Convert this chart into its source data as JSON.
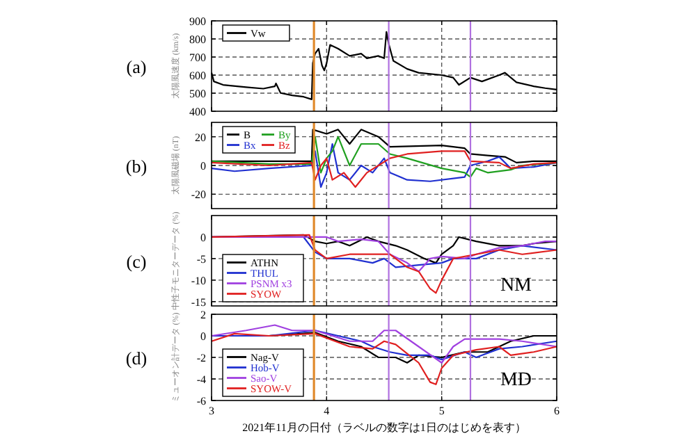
{
  "chart_data": [
    {
      "type": "line",
      "ylabel": "太陽風速度 (km/s)",
      "annotations": [
        "(a)"
      ],
      "xlim": [
        3,
        6
      ],
      "xticks": [
        3,
        4,
        5,
        6
      ],
      "ylim": [
        400,
        900
      ],
      "yticks": [
        400,
        500,
        600,
        700,
        800,
        900
      ],
      "grid": true,
      "legend": "top left",
      "tick_labels": "y",
      "ref_lines": [
        {
          "axis": "x",
          "value": 3.89,
          "color": "#e08a2c"
        },
        {
          "axis": "x",
          "value": 4.54,
          "color": "#b070e0"
        },
        {
          "axis": "x",
          "value": 5.25,
          "color": "#b070e0"
        }
      ],
      "series": [
        {
          "name": "Vw",
          "color": "#000000",
          "x": [
            3.0,
            3.02,
            3.1,
            3.3,
            3.45,
            3.55,
            3.56,
            3.6,
            3.7,
            3.8,
            3.87,
            3.88,
            3.9,
            3.93,
            3.96,
            3.98,
            4.0,
            4.03,
            4.1,
            4.2,
            4.3,
            4.35,
            4.45,
            4.5,
            4.52,
            4.54,
            4.58,
            4.7,
            4.8,
            5.0,
            5.1,
            5.15,
            5.25,
            5.35,
            5.5,
            5.55,
            5.65,
            5.8,
            5.9,
            6.0
          ],
          "values": [
            613,
            565,
            546,
            533,
            525,
            538,
            554,
            501,
            488,
            480,
            466,
            666,
            719,
            746,
            653,
            626,
            666,
            767,
            746,
            706,
            719,
            693,
            706,
            693,
            839,
            772,
            679,
            634,
            613,
            600,
            586,
            546,
            586,
            565,
            600,
            613,
            560,
            538,
            528,
            520
          ]
        }
      ]
    },
    {
      "type": "line",
      "ylabel": "太陽風磁場 (nT)",
      "annotations": [
        "(b)"
      ],
      "xlim": [
        3,
        6
      ],
      "xticks": [
        3,
        4,
        5,
        6
      ],
      "ylim": [
        -30,
        30
      ],
      "yticks": [
        -20,
        0,
        20
      ],
      "grid": true,
      "legend": "top left",
      "tick_labels": "y",
      "ref_lines": [
        {
          "axis": "x",
          "value": 3.89,
          "color": "#e08a2c"
        },
        {
          "axis": "x",
          "value": 4.54,
          "color": "#b070e0"
        },
        {
          "axis": "x",
          "value": 5.25,
          "color": "#b070e0"
        }
      ],
      "series": [
        {
          "name": "B",
          "color": "#000000",
          "x": [
            3.0,
            3.5,
            3.87,
            3.88,
            4.0,
            4.1,
            4.2,
            4.3,
            4.45,
            4.55,
            5.0,
            5.2,
            5.25,
            5.4,
            5.55,
            5.65,
            5.8,
            6.0
          ],
          "values": [
            3,
            3,
            3,
            25,
            22,
            25,
            15,
            25,
            20,
            13,
            14,
            12,
            8,
            7,
            6,
            2,
            3,
            3
          ]
        },
        {
          "name": "Bx",
          "color": "#2030d0",
          "x": [
            3.0,
            3.2,
            3.5,
            3.87,
            3.9,
            3.95,
            4.0,
            4.05,
            4.1,
            4.2,
            4.3,
            4.4,
            4.5,
            4.55,
            4.7,
            4.9,
            5.2,
            5.25,
            5.4,
            5.5,
            5.6,
            5.8,
            6.0
          ],
          "values": [
            -2,
            -4,
            -2,
            0,
            10,
            -15,
            -5,
            15,
            -5,
            -10,
            0,
            -5,
            5,
            -5,
            -10,
            -11,
            -8,
            0,
            3,
            6,
            -2,
            -1,
            2
          ]
        },
        {
          "name": "By",
          "color": "#20a020",
          "x": [
            3.0,
            3.5,
            3.87,
            3.9,
            3.95,
            4.0,
            4.05,
            4.1,
            4.2,
            4.3,
            4.45,
            4.55,
            4.7,
            5.0,
            5.2,
            5.25,
            5.3,
            5.4,
            5.6,
            5.7,
            6.0
          ],
          "values": [
            3,
            1,
            1,
            20,
            -5,
            5,
            10,
            20,
            0,
            15,
            15,
            8,
            5,
            -2,
            -5,
            -8,
            -2,
            -5,
            -3,
            0,
            2
          ]
        },
        {
          "name": "Bz",
          "color": "#e02020",
          "x": [
            3.0,
            3.5,
            3.87,
            3.9,
            3.95,
            4.0,
            4.05,
            4.15,
            4.25,
            4.35,
            4.45,
            4.55,
            4.7,
            5.0,
            5.2,
            5.25,
            5.5,
            5.6,
            5.8,
            6.0
          ],
          "values": [
            2,
            0,
            2,
            -10,
            0,
            5,
            -10,
            -5,
            -15,
            -5,
            0,
            5,
            8,
            10,
            10,
            3,
            2,
            -2,
            1,
            2
          ]
        }
      ]
    },
    {
      "type": "line",
      "ylabel": "中性子モニターデータ (%)",
      "annotations": [
        "(c)",
        "NM"
      ],
      "xlim": [
        3,
        6
      ],
      "xticks": [
        3,
        4,
        5,
        6
      ],
      "ylim": [
        -16,
        5
      ],
      "yticks": [
        -15,
        -10,
        -5,
        0
      ],
      "grid": true,
      "legend": "bottom left",
      "tick_labels": "y",
      "ref_lines": [
        {
          "axis": "x",
          "value": 3.89,
          "color": "#e08a2c"
        },
        {
          "axis": "x",
          "value": 4.54,
          "color": "#b070e0"
        },
        {
          "axis": "x",
          "value": 5.25,
          "color": "#b070e0"
        }
      ],
      "series": [
        {
          "name": "ATHN",
          "color": "#000000",
          "x": [
            3.0,
            3.8,
            3.9,
            4.0,
            4.1,
            4.2,
            4.35,
            4.45,
            4.6,
            4.7,
            4.85,
            4.95,
            5.0,
            5.1,
            5.15,
            5.3,
            5.5,
            5.7,
            5.8,
            6.0
          ],
          "values": [
            0,
            0.5,
            -1,
            -1.5,
            -1,
            -2,
            0,
            -1,
            -2,
            -3,
            -5,
            -6,
            -4,
            -2,
            0,
            -1,
            -2,
            -2,
            -1.5,
            -1
          ]
        },
        {
          "name": "THUL",
          "color": "#2030d0",
          "x": [
            3.0,
            3.8,
            3.9,
            4.0,
            4.2,
            4.4,
            4.5,
            4.6,
            4.8,
            5.0,
            5.1,
            5.3,
            5.5,
            5.7,
            6.0
          ],
          "values": [
            0,
            0,
            -3.5,
            -5,
            -5,
            -6,
            -5,
            -7,
            -6.5,
            -6,
            -5,
            -5,
            -3,
            -2,
            -3
          ]
        },
        {
          "name": "PSNM x3",
          "color": "#a040e0",
          "x": [
            3.0,
            3.8,
            4.0,
            4.1,
            4.3,
            4.45,
            4.55,
            4.7,
            4.8,
            4.9,
            5.0,
            5.2,
            5.3,
            5.5,
            5.7,
            5.9,
            6.0
          ],
          "values": [
            0,
            0,
            0,
            -1,
            -0.5,
            -1,
            -4,
            -6,
            -8,
            -5,
            -4.5,
            -5,
            -4,
            -2.5,
            -2,
            -1,
            -1
          ]
        },
        {
          "name": "SYOW",
          "color": "#e02020",
          "x": [
            3.0,
            3.85,
            3.9,
            4.0,
            4.2,
            4.4,
            4.55,
            4.7,
            4.8,
            4.9,
            4.95,
            5.0,
            5.1,
            5.3,
            5.5,
            5.7,
            6.0
          ],
          "values": [
            0,
            0.5,
            -3,
            -5,
            -4,
            -4,
            -4,
            -7,
            -8,
            -12,
            -13,
            -10,
            -5,
            -4,
            -3,
            -4,
            -3
          ]
        }
      ]
    },
    {
      "type": "line",
      "ylabel": "ミューオン計データ (%)",
      "xlabel": "2021年11月の日付（ラベルの数字は1日のはじめを表す）",
      "annotations": [
        "(d)",
        "MD"
      ],
      "xlim": [
        3,
        6
      ],
      "xticks": [
        3,
        4,
        5,
        6
      ],
      "ylim": [
        -6,
        2
      ],
      "yticks": [
        -6,
        -4,
        -2,
        0,
        2
      ],
      "grid": true,
      "legend": "bottom left",
      "ref_lines": [
        {
          "axis": "x",
          "value": 3.89,
          "color": "#e08a2c"
        },
        {
          "axis": "x",
          "value": 4.54,
          "color": "#b070e0"
        },
        {
          "axis": "x",
          "value": 5.25,
          "color": "#b070e0"
        }
      ],
      "series": [
        {
          "name": "Nag-V",
          "color": "#000000",
          "x": [
            3.0,
            3.5,
            3.9,
            4.1,
            4.3,
            4.45,
            4.6,
            4.7,
            4.8,
            5.0,
            5.2,
            5.4,
            5.6,
            5.8,
            6.0
          ],
          "values": [
            0,
            0,
            0.3,
            -0.5,
            -1,
            -2,
            -2,
            -2.5,
            -1.8,
            -2,
            -1.5,
            -1.5,
            -0.5,
            0,
            0
          ]
        },
        {
          "name": "Hob-V",
          "color": "#2030d0",
          "x": [
            3.0,
            3.5,
            3.9,
            4.1,
            4.3,
            4.4,
            4.55,
            4.7,
            4.9,
            5.0,
            5.2,
            5.3,
            5.5,
            5.7,
            6.0
          ],
          "values": [
            0,
            0,
            0.5,
            0,
            -0.5,
            -1,
            -1.5,
            -1.8,
            -1.8,
            -2.2,
            -1.5,
            -2,
            -1.2,
            -1,
            -0.5
          ]
        },
        {
          "name": "Sao-V",
          "color": "#a040e0",
          "x": [
            3.0,
            3.3,
            3.55,
            3.7,
            3.9,
            4.2,
            4.4,
            4.5,
            4.6,
            4.8,
            5.0,
            5.1,
            5.2,
            5.5,
            5.7,
            6.0
          ],
          "values": [
            0,
            0.5,
            1,
            0.5,
            0.5,
            -0.5,
            -0.5,
            0.5,
            0.5,
            -1,
            -2.5,
            -1,
            -0.3,
            -0.3,
            -0.5,
            -1
          ]
        },
        {
          "name": "SYOW-V",
          "color": "#e02020",
          "x": [
            3.0,
            3.2,
            3.5,
            3.9,
            4.2,
            4.4,
            4.5,
            4.6,
            4.8,
            4.9,
            4.95,
            5.0,
            5.1,
            5.3,
            5.5,
            5.6,
            5.8,
            6.0
          ],
          "values": [
            -0.5,
            0.2,
            0,
            0.2,
            -1,
            -1.2,
            -0.5,
            -0.8,
            -2.5,
            -4.3,
            -4.5,
            -3,
            -1.8,
            -1.3,
            -1,
            -1.8,
            -1.5,
            -1
          ]
        }
      ]
    }
  ]
}
